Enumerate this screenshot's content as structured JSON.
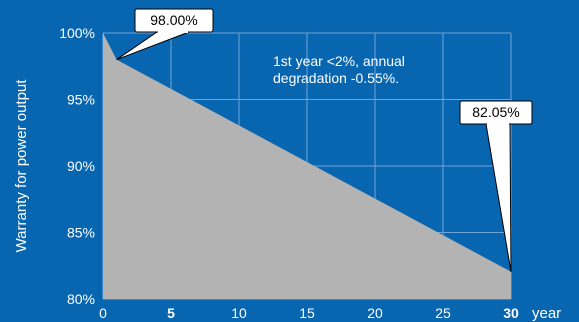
{
  "chart_data": {
    "type": "area",
    "title": "",
    "xlabel": "year",
    "ylabel": "Warranty for power output",
    "xlim": [
      0,
      30
    ],
    "ylim": [
      80,
      100
    ],
    "x_ticks": [
      {
        "value": 0,
        "label": "0",
        "bold": false
      },
      {
        "value": 5,
        "label": "5",
        "bold": true
      },
      {
        "value": 10,
        "label": "10",
        "bold": false
      },
      {
        "value": 15,
        "label": "15",
        "bold": false
      },
      {
        "value": 20,
        "label": "20",
        "bold": false
      },
      {
        "value": 25,
        "label": "25",
        "bold": false
      },
      {
        "value": 30,
        "label": "30",
        "bold": true
      }
    ],
    "y_ticks": [
      {
        "value": 100,
        "label": "100%"
      },
      {
        "value": 95,
        "label": "95%"
      },
      {
        "value": 90,
        "label": "90%"
      },
      {
        "value": 85,
        "label": "85%"
      },
      {
        "value": 80,
        "label": "80%"
      }
    ],
    "grid": true,
    "series": [
      {
        "x": [
          0,
          1,
          30
        ],
        "y": [
          100,
          98.0,
          82.05
        ]
      }
    ],
    "annotation": "1st year <2%, annual degradation -0.55%.",
    "callouts": [
      {
        "x": 1,
        "y": 98.0,
        "label": "98.00%"
      },
      {
        "x": 30,
        "y": 82.05,
        "label": "82.05%"
      }
    ],
    "colors": {
      "background": "#0865b0",
      "fill": "#b3b3b3",
      "grid": "#6fa3d6",
      "text": "#ffffff"
    }
  }
}
